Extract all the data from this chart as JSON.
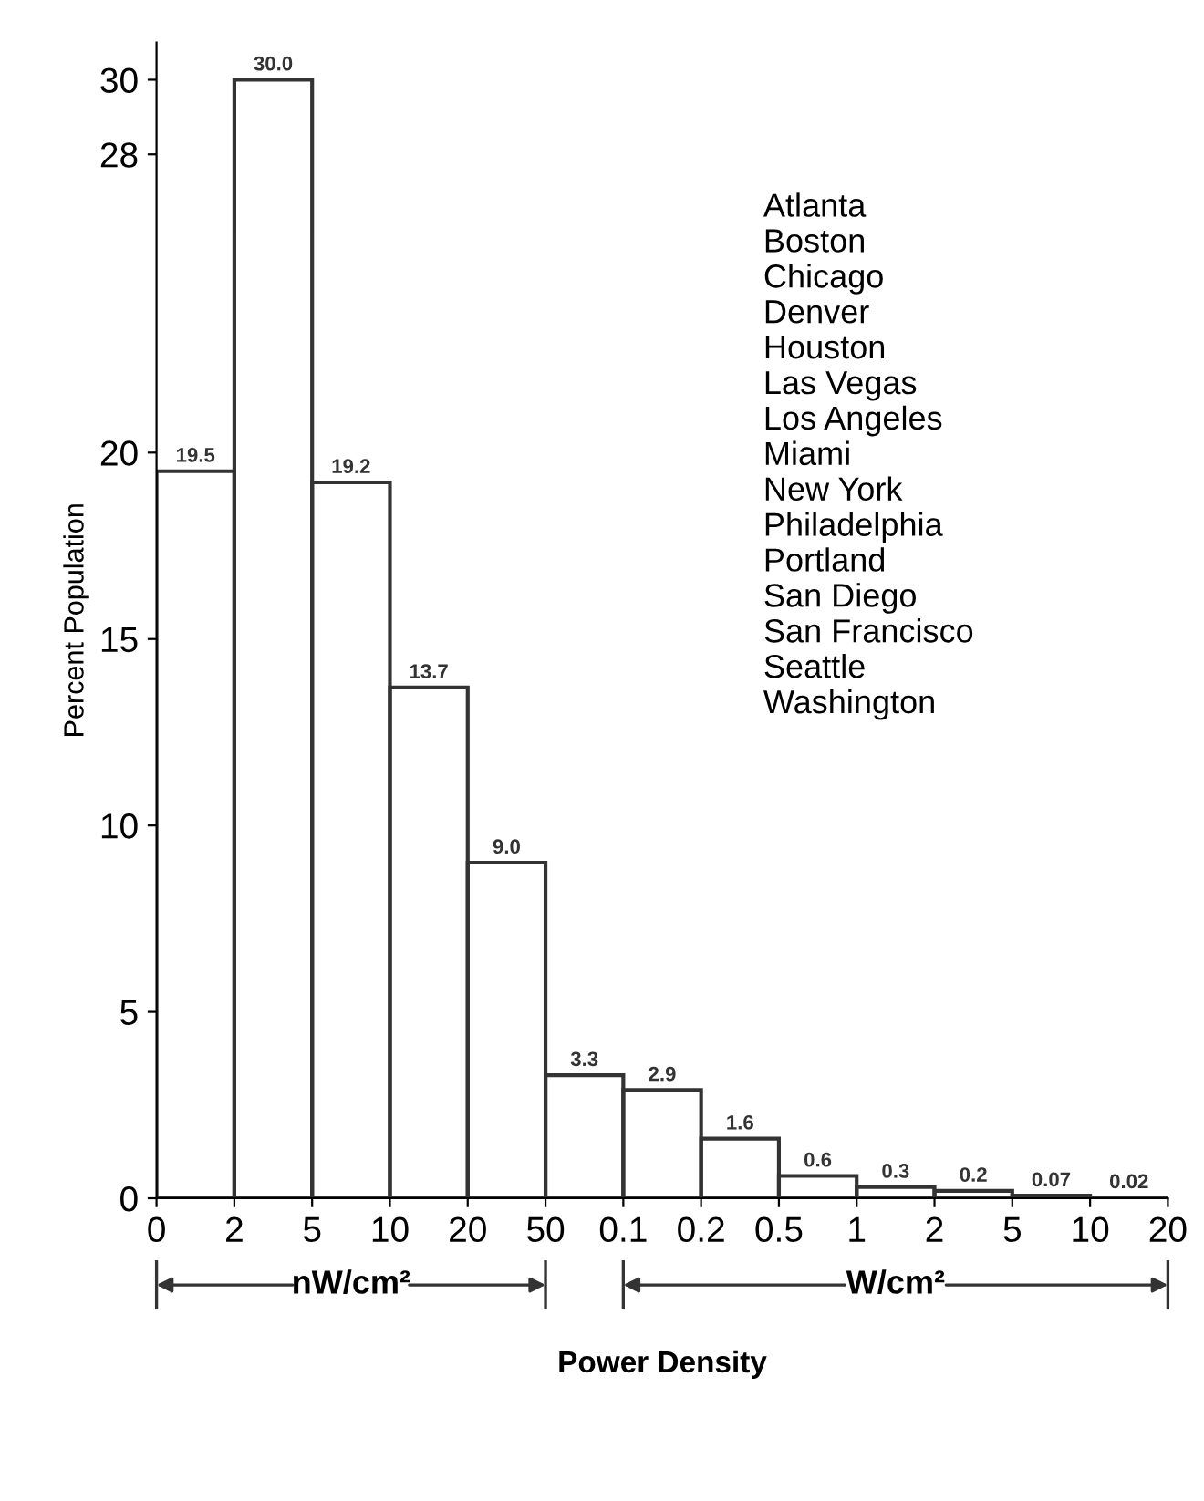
{
  "chart_data": {
    "type": "bar",
    "xlabel": "Power Density",
    "ylabel": "Percent Population",
    "categories": [
      null,
      null,
      null,
      null,
      null,
      null,
      null,
      null,
      null,
      null,
      null,
      null,
      null
    ],
    "values": [
      19.5,
      30.0,
      19.2,
      13.7,
      9.0,
      3.3,
      2.9,
      1.6,
      0.6,
      0.3,
      0.2,
      0.07,
      0.02
    ],
    "value_labels": [
      "19.5",
      "30.0",
      "19.2",
      "13.7",
      "9.0",
      "3.3",
      "2.9",
      "1.6",
      "0.6",
      "0.3",
      "0.2",
      "0.07",
      "0.02"
    ],
    "color": "#333333",
    "ylim": [
      0,
      31
    ],
    "yticks": [
      0,
      5,
      10,
      15,
      20,
      28,
      30
    ],
    "annotations": [
      "Atlanta\nBoston\nChicago\nDenver\nHouston\nLas Vegas\nLos Angeles\nMiami\nNew York\nPhiladelphia\nPortland\nSan Diego\nSan Francisco\nSeattle\nWashington",
      "nW/cm²",
      "W/cm²",
      "0",
      "2",
      "5",
      "10",
      "20",
      "50",
      "0.1",
      "0.2",
      "0.5",
      "1",
      "2",
      "5",
      "10",
      "20"
    ]
  }
}
